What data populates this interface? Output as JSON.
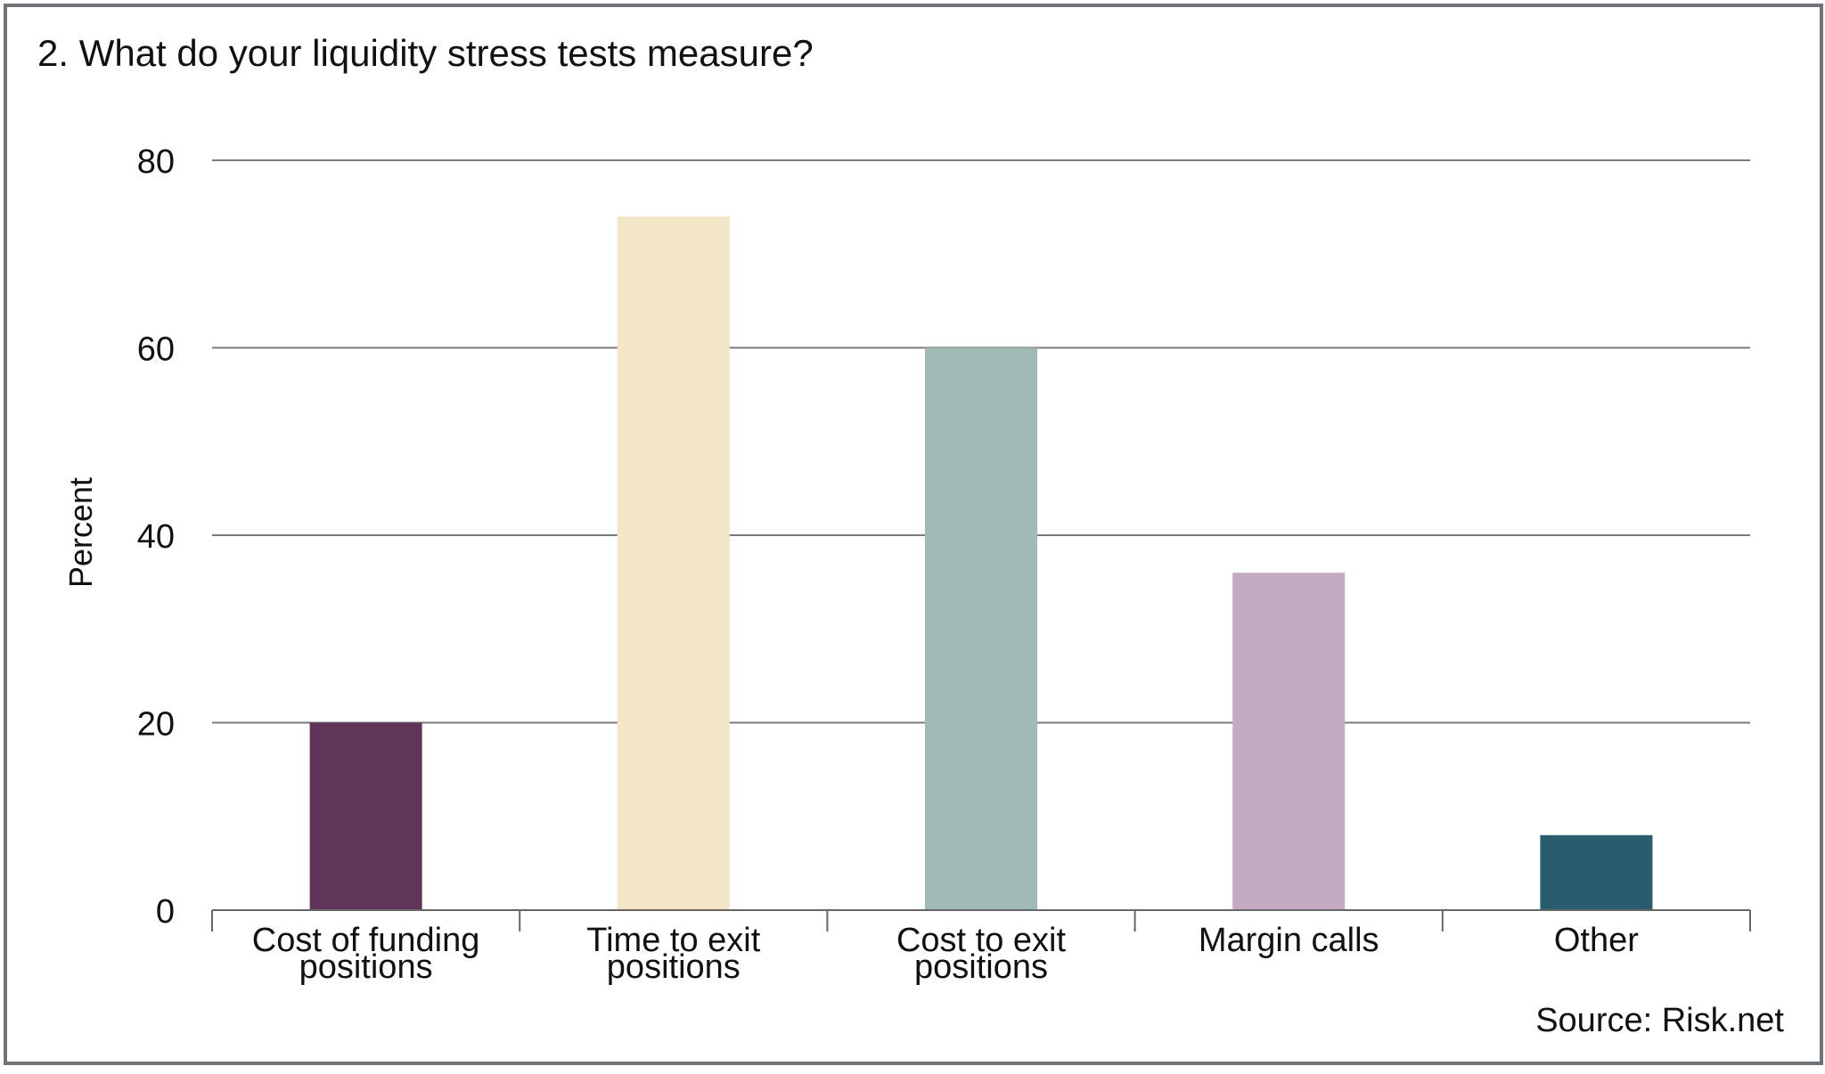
{
  "chart_data": {
    "type": "bar",
    "title": "2. What do your liquidity stress tests measure?",
    "ylabel": "Percent",
    "xlabel": "",
    "ylim": [
      0,
      80
    ],
    "yticks": [
      0,
      20,
      40,
      60,
      80
    ],
    "grid": true,
    "categories": [
      [
        "Cost of funding",
        "positions"
      ],
      [
        "Time to exit",
        "positions"
      ],
      [
        "Cost to exit",
        "positions"
      ],
      [
        "Margin calls"
      ],
      [
        "Other"
      ]
    ],
    "values": [
      20,
      74,
      60,
      36,
      8
    ],
    "colors": [
      "#5e3558",
      "#f3e6c7",
      "#a2bab6",
      "#c4abc3",
      "#275d6c"
    ],
    "source": "Source: Risk.net"
  }
}
